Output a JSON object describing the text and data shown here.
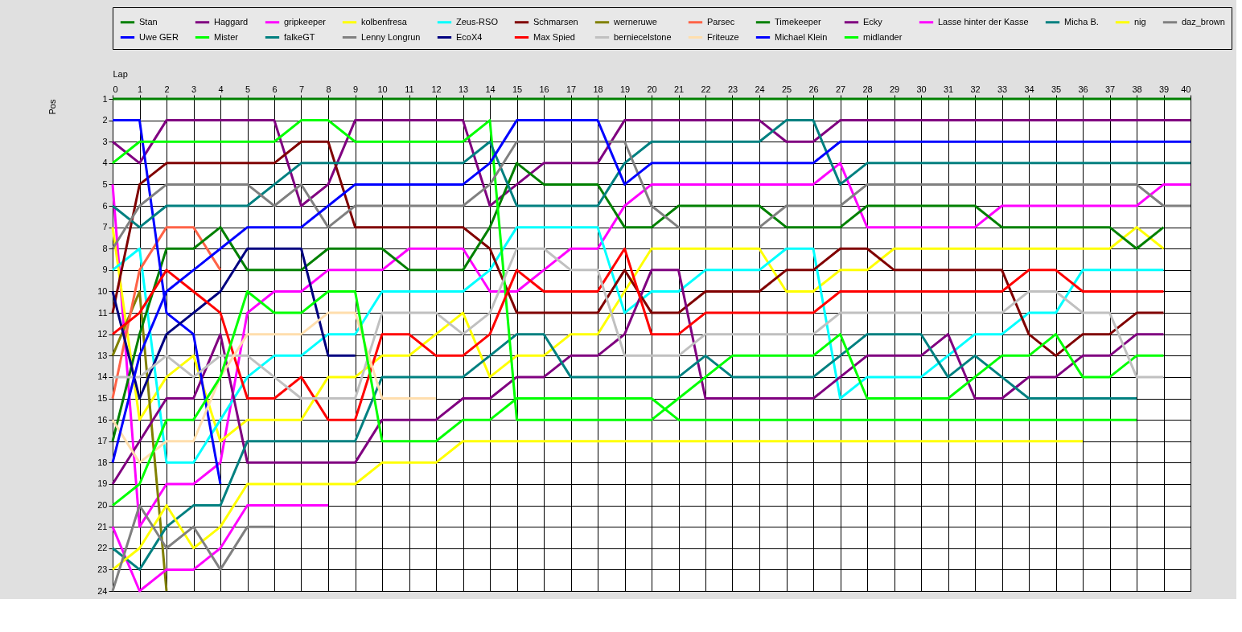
{
  "chart_data": {
    "type": "line",
    "xlabel": "Lap",
    "ylabel": "Pos",
    "x": [
      0,
      1,
      2,
      3,
      4,
      5,
      6,
      7,
      8,
      9,
      10,
      11,
      12,
      13,
      14,
      15,
      16,
      17,
      18,
      19,
      20,
      21,
      22,
      23,
      24,
      25,
      26,
      27,
      28,
      29,
      30,
      31,
      32,
      33,
      34,
      35,
      36,
      37,
      38,
      39,
      40
    ],
    "xlim": [
      0,
      40
    ],
    "xticks": [
      0,
      1,
      2,
      3,
      4,
      5,
      6,
      7,
      8,
      9,
      10,
      11,
      12,
      13,
      14,
      15,
      16,
      17,
      18,
      19,
      20,
      21,
      22,
      23,
      24,
      25,
      26,
      27,
      28,
      29,
      30,
      31,
      32,
      33,
      34,
      35,
      36,
      37,
      38,
      39,
      40
    ],
    "ylim": [
      24,
      1
    ],
    "yticks": [
      1,
      2,
      3,
      4,
      5,
      6,
      7,
      8,
      9,
      10,
      11,
      12,
      13,
      14,
      15,
      16,
      17,
      18,
      19,
      20,
      21,
      22,
      23,
      24
    ],
    "grid": true,
    "legend": "top",
    "marker": "none",
    "line_style": "solid",
    "series": [
      {
        "name": "Stan",
        "color": "#008000",
        "values": [
          1,
          1,
          1,
          1,
          1,
          1,
          1,
          1,
          1,
          1,
          1,
          1,
          1,
          1,
          1,
          1,
          1,
          1,
          1,
          1,
          1,
          1,
          1,
          1,
          1,
          1,
          1,
          1,
          1,
          1,
          1,
          1,
          1,
          1,
          1,
          1,
          1,
          1,
          1,
          1,
          1
        ]
      },
      {
        "name": "Haggard",
        "color": "#800080",
        "values": [
          3,
          4,
          2,
          2,
          2,
          2,
          2,
          6,
          5,
          2,
          2,
          2,
          2,
          2,
          6,
          5,
          4,
          4,
          4,
          2,
          2,
          2,
          2,
          2,
          2,
          3,
          3,
          2,
          2,
          2,
          2,
          2,
          2,
          2,
          2,
          2,
          2,
          2,
          2,
          2,
          2
        ]
      },
      {
        "name": "gripkeeper",
        "color": "#ff00ff",
        "values": [
          5,
          21,
          19,
          19,
          18,
          11,
          10,
          10,
          9,
          9,
          9,
          8,
          8,
          8,
          10,
          10,
          9,
          8,
          8,
          6,
          5,
          5,
          5,
          5,
          5,
          5,
          5,
          4,
          7,
          7,
          7,
          7,
          7,
          6,
          6,
          6,
          6,
          6,
          6,
          5,
          5
        ]
      },
      {
        "name": "kolbenfresa",
        "color": "#ffff00",
        "values": [
          7,
          16,
          14,
          13,
          17,
          16,
          16,
          16,
          14,
          14,
          13,
          13,
          12,
          11,
          14,
          13,
          13,
          12,
          12,
          10,
          8,
          8,
          8,
          8,
          8,
          10,
          10,
          9,
          9,
          8,
          8,
          8,
          8,
          8,
          8,
          8,
          8,
          8,
          7,
          8,
          null
        ]
      },
      {
        "name": "Zeus-RSO",
        "color": "#00ffff",
        "values": [
          9,
          8,
          18,
          18,
          16,
          14,
          13,
          13,
          12,
          12,
          10,
          10,
          10,
          10,
          9,
          7,
          7,
          7,
          7,
          11,
          10,
          10,
          9,
          9,
          9,
          8,
          8,
          15,
          14,
          14,
          14,
          13,
          12,
          12,
          11,
          11,
          9,
          9,
          9,
          9,
          null
        ]
      },
      {
        "name": "Schmarsen",
        "color": "#800000",
        "values": [
          11,
          5,
          4,
          4,
          4,
          4,
          4,
          3,
          3,
          7,
          7,
          7,
          7,
          7,
          8,
          11,
          11,
          11,
          11,
          9,
          11,
          11,
          10,
          10,
          10,
          9,
          9,
          8,
          8,
          9,
          9,
          9,
          9,
          9,
          12,
          13,
          12,
          12,
          11,
          11,
          null
        ]
      },
      {
        "name": "werneruwe",
        "color": "#808000",
        "values": [
          13,
          10,
          24,
          null,
          null,
          null,
          null,
          null,
          null,
          null,
          null,
          null,
          null,
          null,
          null,
          null,
          null,
          null,
          null,
          null,
          null,
          null,
          null,
          null,
          null,
          null,
          null,
          null,
          null,
          null,
          null,
          null,
          null,
          null,
          null,
          null,
          null,
          null,
          null,
          null,
          null
        ]
      },
      {
        "name": "Parsec",
        "color": "#ff6347",
        "values": [
          15,
          9,
          7,
          7,
          9,
          null,
          null,
          null,
          null,
          null,
          null,
          null,
          null,
          null,
          null,
          null,
          null,
          null,
          null,
          null,
          null,
          null,
          null,
          null,
          null,
          null,
          null,
          null,
          null,
          null,
          null,
          null,
          null,
          null,
          null,
          null,
          null,
          null,
          null,
          null,
          null
        ]
      },
      {
        "name": "Timekeeper",
        "color": "#008000",
        "values": [
          17,
          12,
          8,
          8,
          7,
          9,
          9,
          9,
          8,
          8,
          8,
          9,
          9,
          9,
          7,
          4,
          5,
          5,
          5,
          7,
          7,
          6,
          6,
          6,
          6,
          7,
          7,
          7,
          6,
          6,
          6,
          6,
          6,
          7,
          7,
          7,
          7,
          7,
          8,
          7,
          null
        ]
      },
      {
        "name": "Ecky",
        "color": "#800080",
        "values": [
          19,
          17,
          15,
          15,
          12,
          18,
          18,
          18,
          18,
          18,
          16,
          16,
          16,
          15,
          15,
          14,
          14,
          13,
          13,
          12,
          9,
          9,
          15,
          15,
          15,
          15,
          15,
          14,
          13,
          13,
          13,
          12,
          15,
          15,
          14,
          14,
          13,
          13,
          12,
          12,
          null
        ]
      },
      {
        "name": "Lasse hinter der Kasse",
        "color": "#ff00ff",
        "values": [
          21,
          24,
          23,
          23,
          22,
          20,
          20,
          20,
          20,
          null,
          null,
          null,
          null,
          null,
          null,
          null,
          null,
          null,
          null,
          null,
          null,
          null,
          null,
          null,
          null,
          null,
          null,
          null,
          null,
          null,
          null,
          null,
          null,
          null,
          null,
          null,
          null,
          null,
          null,
          null,
          null
        ]
      },
      {
        "name": "Micha B.",
        "color": "#008080",
        "values": [
          22,
          23,
          21,
          20,
          20,
          17,
          17,
          17,
          17,
          17,
          14,
          14,
          14,
          14,
          13,
          12,
          12,
          14,
          14,
          14,
          14,
          14,
          13,
          14,
          14,
          14,
          14,
          13,
          12,
          12,
          12,
          14,
          13,
          14,
          15,
          15,
          15,
          15,
          15,
          null,
          null
        ]
      },
      {
        "name": "nig",
        "color": "#ffff00",
        "values": [
          23,
          22,
          20,
          22,
          21,
          19,
          19,
          19,
          19,
          19,
          18,
          18,
          18,
          17,
          17,
          17,
          17,
          17,
          17,
          17,
          17,
          17,
          17,
          17,
          17,
          17,
          17,
          17,
          17,
          17,
          17,
          17,
          17,
          17,
          17,
          17,
          17,
          null,
          null,
          null,
          null
        ]
      },
      {
        "name": "daz_brown",
        "color": "#808080",
        "values": [
          24,
          20,
          22,
          21,
          23,
          21,
          21,
          null,
          null,
          null,
          null,
          null,
          null,
          null,
          null,
          null,
          null,
          null,
          null,
          null,
          null,
          null,
          null,
          null,
          null,
          null,
          null,
          null,
          null,
          null,
          null,
          null,
          null,
          null,
          null,
          null,
          null,
          null,
          null,
          null,
          null
        ]
      },
      {
        "name": "Uwe GER",
        "color": "#0000ff",
        "values": [
          2,
          2,
          11,
          12,
          19,
          null,
          null,
          null,
          null,
          null,
          null,
          null,
          null,
          null,
          null,
          null,
          null,
          null,
          null,
          null,
          null,
          null,
          null,
          null,
          null,
          null,
          null,
          null,
          null,
          null,
          null,
          null,
          null,
          null,
          null,
          null,
          null,
          null,
          null,
          null,
          null
        ]
      },
      {
        "name": "Mister",
        "color": "#00ff00",
        "values": [
          4,
          3,
          3,
          3,
          3,
          3,
          3,
          2,
          2,
          3,
          3,
          3,
          3,
          3,
          2,
          16,
          16,
          16,
          16,
          16,
          16,
          15,
          14,
          13,
          13,
          13,
          13,
          12,
          15,
          15,
          15,
          15,
          14,
          13,
          13,
          12,
          14,
          14,
          13,
          13,
          null
        ]
      },
      {
        "name": "falkeGT",
        "color": "#008080",
        "values": [
          6,
          7,
          6,
          6,
          6,
          6,
          5,
          4,
          4,
          4,
          4,
          4,
          4,
          4,
          3,
          6,
          6,
          6,
          6,
          4,
          3,
          3,
          3,
          3,
          3,
          2,
          2,
          5,
          4,
          4,
          4,
          4,
          4,
          4,
          4,
          4,
          4,
          4,
          4,
          4,
          4
        ]
      },
      {
        "name": "Lenny Longrun",
        "color": "#808080",
        "values": [
          8,
          6,
          5,
          5,
          5,
          5,
          6,
          5,
          7,
          6,
          6,
          6,
          6,
          6,
          5,
          3,
          3,
          3,
          3,
          3,
          6,
          7,
          7,
          7,
          7,
          6,
          6,
          6,
          5,
          5,
          5,
          5,
          5,
          5,
          5,
          5,
          5,
          5,
          5,
          6,
          6
        ]
      },
      {
        "name": "EcoX4",
        "color": "#000080",
        "values": [
          10,
          15,
          12,
          11,
          10,
          8,
          8,
          8,
          13,
          13,
          null,
          null,
          null,
          null,
          null,
          null,
          null,
          null,
          null,
          null,
          null,
          null,
          null,
          null,
          null,
          null,
          null,
          null,
          null,
          null,
          null,
          null,
          null,
          null,
          null,
          null,
          null,
          null,
          null,
          null,
          null
        ]
      },
      {
        "name": "Max Spied",
        "color": "#ff0000",
        "values": [
          12,
          11,
          9,
          10,
          11,
          15,
          15,
          14,
          16,
          16,
          12,
          12,
          13,
          13,
          12,
          9,
          10,
          10,
          10,
          8,
          12,
          12,
          11,
          11,
          11,
          11,
          11,
          10,
          10,
          10,
          10,
          10,
          10,
          10,
          9,
          9,
          10,
          10,
          10,
          10,
          null
        ]
      },
      {
        "name": "berniecelstone",
        "color": "#c0c0c0",
        "values": [
          14,
          14,
          13,
          14,
          13,
          13,
          14,
          15,
          15,
          15,
          11,
          11,
          11,
          12,
          11,
          8,
          8,
          9,
          9,
          13,
          13,
          13,
          12,
          12,
          12,
          12,
          12,
          11,
          11,
          11,
          11,
          11,
          11,
          11,
          10,
          10,
          11,
          11,
          14,
          14,
          null
        ]
      },
      {
        "name": "Friteuze",
        "color": "#ffdead",
        "values": [
          16,
          18,
          17,
          17,
          14,
          12,
          12,
          12,
          11,
          11,
          15,
          15,
          15,
          null,
          null,
          null,
          null,
          null,
          null,
          null,
          null,
          null,
          null,
          null,
          null,
          null,
          null,
          null,
          null,
          null,
          null,
          null,
          null,
          null,
          null,
          null,
          null,
          null,
          null,
          null,
          null
        ]
      },
      {
        "name": "Michael Klein",
        "color": "#0000ff",
        "values": [
          18,
          13,
          10,
          9,
          8,
          7,
          7,
          7,
          6,
          5,
          5,
          5,
          5,
          5,
          4,
          2,
          2,
          2,
          2,
          5,
          4,
          4,
          4,
          4,
          4,
          4,
          4,
          3,
          3,
          3,
          3,
          3,
          3,
          3,
          3,
          3,
          3,
          3,
          3,
          3,
          3
        ]
      },
      {
        "name": "midlander",
        "color": "#00ff00",
        "values": [
          20,
          19,
          16,
          16,
          14,
          10,
          11,
          11,
          10,
          10,
          17,
          17,
          17,
          16,
          16,
          15,
          15,
          15,
          15,
          15,
          15,
          16,
          16,
          16,
          16,
          16,
          16,
          16,
          16,
          16,
          16,
          16,
          16,
          16,
          16,
          16,
          16,
          16,
          16,
          null,
          null
        ]
      }
    ]
  }
}
